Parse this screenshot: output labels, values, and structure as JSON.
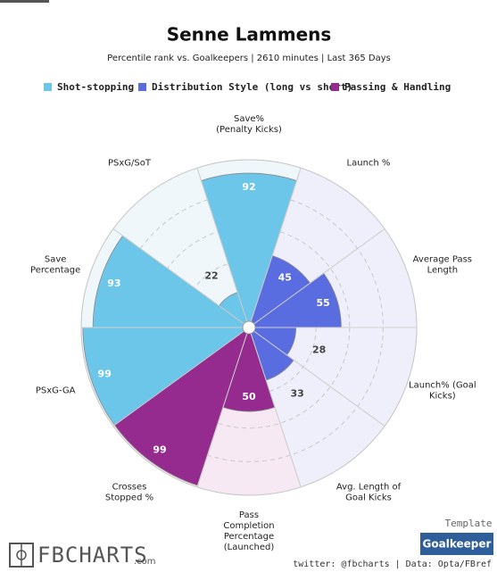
{
  "chart_data": {
    "type": "pizza",
    "title": "Senne Lammens",
    "subtitle": "Percentile rank vs. Goalkeepers | 2610 minutes | Last 365 Days",
    "categories": [
      [
        "Save%",
        "(Penalty Kicks)"
      ],
      [
        "Launch %"
      ],
      [
        "Average Pass",
        "Length"
      ],
      [
        "Launch% (Goal",
        "Kicks)"
      ],
      [
        "Avg. Length of",
        "Goal Kicks"
      ],
      [
        "Pass",
        "Completion",
        "Percentage",
        "(Launched)"
      ],
      [
        "Crosses",
        "Stopped %"
      ],
      [
        "PSxG-GA"
      ],
      [
        "Save",
        "Percentage"
      ],
      [
        "PSxG/SoT"
      ]
    ],
    "series": [
      {
        "name": "Shot-stopping",
        "color": "#6cc6ea",
        "background_color": "#eff7fb",
        "values": [
          92,
          null,
          null,
          null,
          null,
          null,
          null,
          99,
          93,
          22
        ]
      },
      {
        "name": "Distribution Style (long vs short)",
        "color": "#5a6de0",
        "background_color": "#eeeffa",
        "values": [
          null,
          45,
          55,
          28,
          33,
          null,
          null,
          null,
          null,
          null
        ]
      },
      {
        "name": "Passing & Handling",
        "color": "#952a8f",
        "background_color": "#f6e9f3",
        "values": [
          null,
          null,
          null,
          null,
          null,
          50,
          99,
          null,
          null,
          null
        ]
      }
    ],
    "rlim": [
      0,
      100
    ],
    "rticks": [
      20,
      40,
      60,
      80,
      100
    ],
    "template_label": "Template",
    "template_button": "Goalkeeper",
    "credit": "twitter: @fbcharts | Data: Opta/FBref",
    "logo": "FBCHARTS",
    "logo_suffix": ".com"
  }
}
